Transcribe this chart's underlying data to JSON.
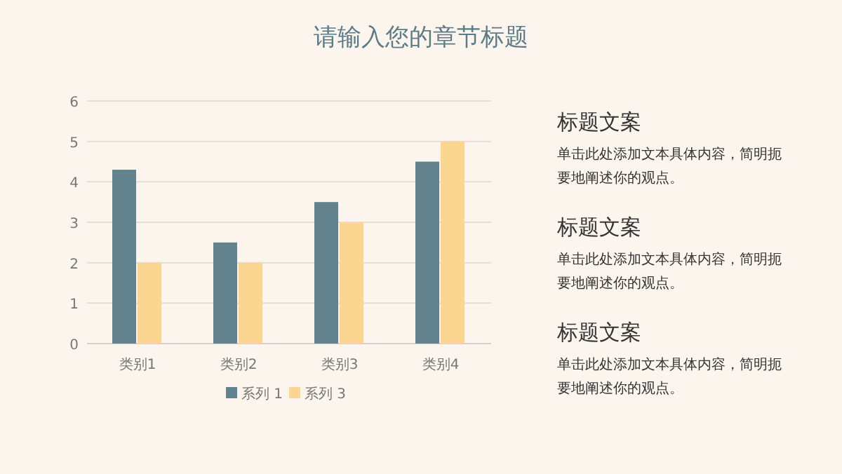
{
  "chart_data": [
    {
      "type": "bar",
      "title": "请输入您的章节标题",
      "categories": [
        "类别1",
        "类别2",
        "类别3",
        "类别4"
      ],
      "series": [
        {
          "name": "系列 1",
          "color": "#62828e",
          "values": [
            4.3,
            2.5,
            3.5,
            4.5
          ]
        },
        {
          "name": "系列 3",
          "color": "#fad690",
          "values": [
            2,
            2,
            3,
            5
          ]
        }
      ],
      "ylim": [
        0,
        6
      ],
      "yticks": [
        0,
        1,
        2,
        3,
        4,
        5,
        6
      ],
      "grid": "y",
      "legend": "bottom"
    },
    {
      "type": "other",
      "annotations": [
        "标题文案",
        "单击此处添加文本具体内容，简明扼要地阐述你的观点。",
        "标题文案",
        "单击此处添加文本具体内容，简明扼要地阐述你的观点。",
        "标题文案",
        "单击此处添加文本具体内容，简明扼要地阐述你的观点。"
      ]
    }
  ]
}
